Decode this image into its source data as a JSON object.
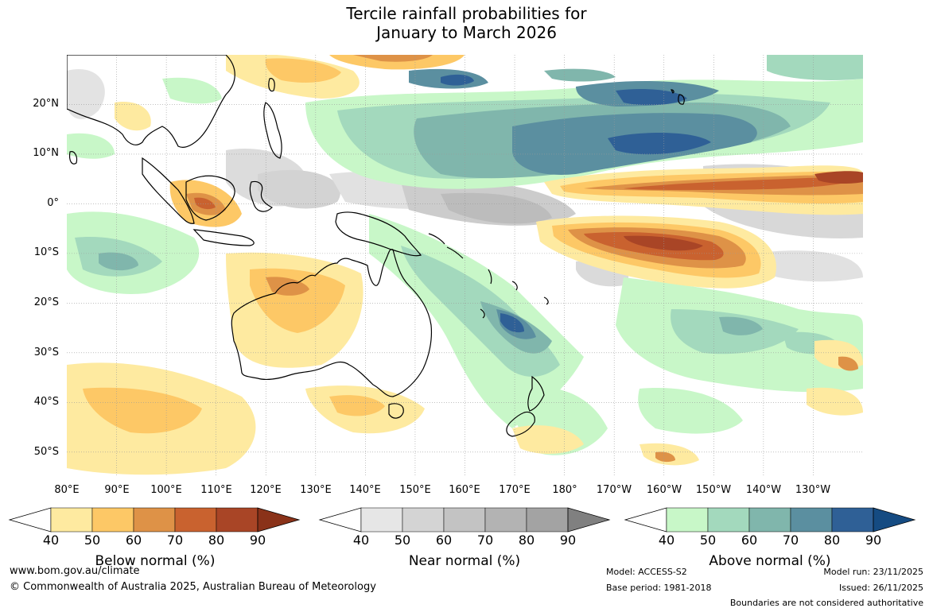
{
  "title": {
    "line1": "Tercile rainfall probabilities for",
    "line2": "January to March 2026"
  },
  "map": {
    "lat_labels": [
      "20°N",
      "10°N",
      "0°",
      "10°S",
      "20°S",
      "30°S",
      "40°S",
      "50°S"
    ],
    "lon_labels": [
      "80°E",
      "90°E",
      "100°E",
      "110°E",
      "120°E",
      "130°E",
      "140°E",
      "150°E",
      "160°E",
      "170°E",
      "180°",
      "170°W",
      "160°W",
      "150°W",
      "140°W",
      "130°W"
    ],
    "lat_range": [
      -55,
      30
    ],
    "lon_range": [
      80,
      240
    ]
  },
  "legends": [
    {
      "title": "Below normal (%)",
      "ticks": [
        "40",
        "50",
        "60",
        "70",
        "80",
        "90"
      ],
      "colors": [
        "#ffffff",
        "#feeaa0",
        "#fdc866",
        "#de9247",
        "#c9622f",
        "#a94526",
        "#8a3219"
      ]
    },
    {
      "title": "Near normal (%)",
      "ticks": [
        "40",
        "50",
        "60",
        "70",
        "80",
        "90"
      ],
      "colors": [
        "#ffffff",
        "#e6e6e6",
        "#d4d4d4",
        "#c3c3c3",
        "#b3b3b3",
        "#a3a3a3",
        "#808080"
      ]
    },
    {
      "title": "Above normal (%)",
      "ticks": [
        "40",
        "50",
        "60",
        "70",
        "80",
        "90"
      ],
      "colors": [
        "#ffffff",
        "#c8f7c8",
        "#a3d9bd",
        "#80b6ac",
        "#5b8fa0",
        "#2f6096",
        "#154b82"
      ]
    }
  ],
  "footer": {
    "url": "www.bom.gov.au/climate",
    "copyright": "© Commonwealth of Australia 2025, Australian Bureau of Meteorology",
    "model": "Model: ACCESS-S2",
    "base_period": "Base period: 1981-2018",
    "model_run": "Model run: 23/11/2025",
    "issued": "Issued: 26/11/2025",
    "disclaimer": "Boundaries are not considered authoritative"
  }
}
